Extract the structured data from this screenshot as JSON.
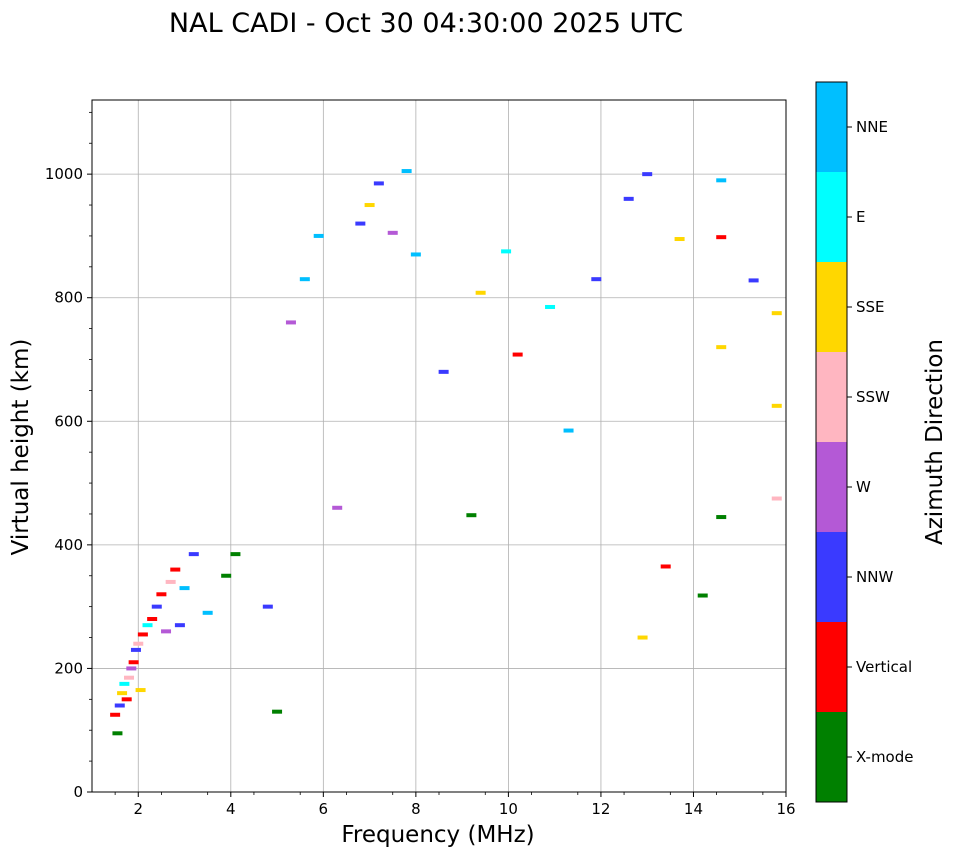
{
  "chart_data": {
    "type": "scatter",
    "title": "NAL CADI - Oct 30 04:30:00 2025 UTC",
    "xlabel": "Frequency (MHz)",
    "ylabel": "Virtual height (km)",
    "xlim": [
      1,
      16
    ],
    "ylim": [
      0,
      1120
    ],
    "xticks": [
      2,
      4,
      6,
      8,
      10,
      12,
      14,
      16
    ],
    "yticks": [
      0,
      200,
      400,
      600,
      800,
      1000
    ],
    "grid": true,
    "colorbar": {
      "label": "Azimuth Direction",
      "categories": [
        {
          "name": "X-mode",
          "color": "#008000"
        },
        {
          "name": "Vertical",
          "color": "#ff0000"
        },
        {
          "name": "NNW",
          "color": "#3a3aff"
        },
        {
          "name": "W",
          "color": "#b459d6"
        },
        {
          "name": "SSW",
          "color": "#ffb6c1"
        },
        {
          "name": "SSE",
          "color": "#ffd700"
        },
        {
          "name": "E",
          "color": "#00ffff"
        },
        {
          "name": "NNE",
          "color": "#00bfff"
        }
      ]
    },
    "points": [
      {
        "f": 1.5,
        "h": 125,
        "dir": "Vertical"
      },
      {
        "f": 1.55,
        "h": 95,
        "dir": "X-mode"
      },
      {
        "f": 1.6,
        "h": 140,
        "dir": "NNW"
      },
      {
        "f": 1.65,
        "h": 160,
        "dir": "SSE"
      },
      {
        "f": 1.7,
        "h": 175,
        "dir": "E"
      },
      {
        "f": 1.75,
        "h": 150,
        "dir": "Vertical"
      },
      {
        "f": 1.8,
        "h": 185,
        "dir": "SSW"
      },
      {
        "f": 1.85,
        "h": 200,
        "dir": "W"
      },
      {
        "f": 1.9,
        "h": 210,
        "dir": "Vertical"
      },
      {
        "f": 1.95,
        "h": 230,
        "dir": "NNW"
      },
      {
        "f": 2.0,
        "h": 240,
        "dir": "SSW"
      },
      {
        "f": 2.05,
        "h": 165,
        "dir": "SSE"
      },
      {
        "f": 2.1,
        "h": 255,
        "dir": "Vertical"
      },
      {
        "f": 2.2,
        "h": 270,
        "dir": "E"
      },
      {
        "f": 2.3,
        "h": 280,
        "dir": "Vertical"
      },
      {
        "f": 2.4,
        "h": 300,
        "dir": "NNW"
      },
      {
        "f": 2.5,
        "h": 320,
        "dir": "Vertical"
      },
      {
        "f": 2.6,
        "h": 260,
        "dir": "W"
      },
      {
        "f": 2.7,
        "h": 340,
        "dir": "SSW"
      },
      {
        "f": 2.8,
        "h": 360,
        "dir": "Vertical"
      },
      {
        "f": 2.9,
        "h": 270,
        "dir": "NNW"
      },
      {
        "f": 3.0,
        "h": 330,
        "dir": "NNE"
      },
      {
        "f": 3.2,
        "h": 385,
        "dir": "NNW"
      },
      {
        "f": 3.5,
        "h": 290,
        "dir": "NNE"
      },
      {
        "f": 3.9,
        "h": 350,
        "dir": "X-mode"
      },
      {
        "f": 4.1,
        "h": 385,
        "dir": "X-mode"
      },
      {
        "f": 4.8,
        "h": 300,
        "dir": "NNW"
      },
      {
        "f": 5.0,
        "h": 130,
        "dir": "X-mode"
      },
      {
        "f": 5.3,
        "h": 760,
        "dir": "W"
      },
      {
        "f": 5.6,
        "h": 830,
        "dir": "NNE"
      },
      {
        "f": 5.9,
        "h": 900,
        "dir": "NNE"
      },
      {
        "f": 6.3,
        "h": 460,
        "dir": "W"
      },
      {
        "f": 6.8,
        "h": 920,
        "dir": "NNW"
      },
      {
        "f": 7.0,
        "h": 950,
        "dir": "SSE"
      },
      {
        "f": 7.2,
        "h": 985,
        "dir": "NNW"
      },
      {
        "f": 7.5,
        "h": 905,
        "dir": "W"
      },
      {
        "f": 7.8,
        "h": 1005,
        "dir": "NNE"
      },
      {
        "f": 8.0,
        "h": 870,
        "dir": "NNE"
      },
      {
        "f": 8.6,
        "h": 680,
        "dir": "NNW"
      },
      {
        "f": 9.2,
        "h": 448,
        "dir": "X-mode"
      },
      {
        "f": 9.4,
        "h": 808,
        "dir": "SSE"
      },
      {
        "f": 9.95,
        "h": 875,
        "dir": "E"
      },
      {
        "f": 10.2,
        "h": 708,
        "dir": "Vertical"
      },
      {
        "f": 10.9,
        "h": 785,
        "dir": "E"
      },
      {
        "f": 11.3,
        "h": 585,
        "dir": "NNE"
      },
      {
        "f": 11.9,
        "h": 830,
        "dir": "NNW"
      },
      {
        "f": 12.6,
        "h": 960,
        "dir": "NNW"
      },
      {
        "f": 12.9,
        "h": 250,
        "dir": "SSE"
      },
      {
        "f": 13.0,
        "h": 1000,
        "dir": "NNW"
      },
      {
        "f": 13.4,
        "h": 365,
        "dir": "Vertical"
      },
      {
        "f": 13.7,
        "h": 895,
        "dir": "SSE"
      },
      {
        "f": 14.2,
        "h": 318,
        "dir": "X-mode"
      },
      {
        "f": 14.6,
        "h": 898,
        "dir": "Vertical"
      },
      {
        "f": 14.6,
        "h": 990,
        "dir": "NNE"
      },
      {
        "f": 14.6,
        "h": 720,
        "dir": "SSE"
      },
      {
        "f": 14.6,
        "h": 445,
        "dir": "X-mode"
      },
      {
        "f": 15.3,
        "h": 828,
        "dir": "NNW"
      },
      {
        "f": 15.8,
        "h": 775,
        "dir": "SSE"
      },
      {
        "f": 15.8,
        "h": 625,
        "dir": "SSE"
      },
      {
        "f": 15.8,
        "h": 475,
        "dir": "SSW"
      }
    ]
  }
}
